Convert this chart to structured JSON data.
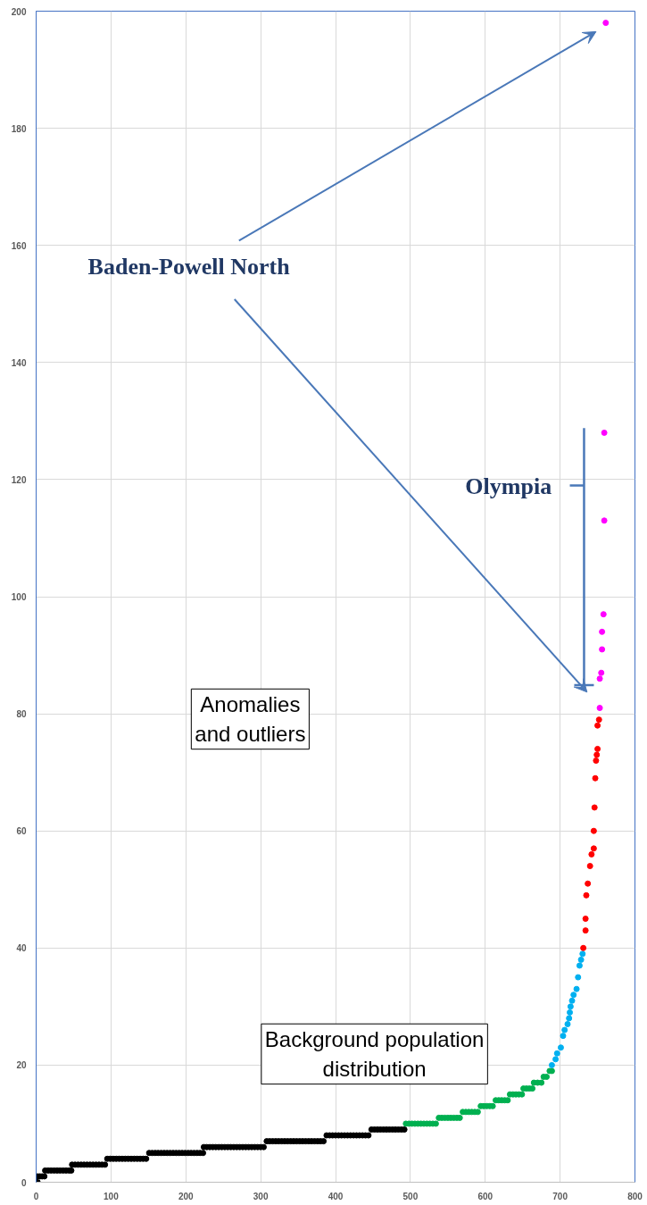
{
  "chart_data": {
    "type": "scatter",
    "marker": "circle",
    "grid": true,
    "xlim": [
      0,
      800
    ],
    "xticks": [
      0,
      100,
      200,
      300,
      400,
      500,
      600,
      700,
      800
    ],
    "ylim": [
      0,
      200
    ],
    "yticks": [
      0,
      20,
      40,
      60,
      80,
      100,
      120,
      140,
      160,
      180,
      200
    ],
    "annotations": [
      "Baden-Powell North",
      "Olympia",
      "Anomalies and outliers",
      "Background population distribution"
    ],
    "series": [
      {
        "color": "#000000",
        "x": [
          0,
          2,
          2,
          5,
          8,
          11,
          12,
          16,
          20,
          24,
          28,
          32,
          36,
          40,
          44,
          47,
          48,
          52,
          56,
          60,
          64,
          68,
          72,
          76,
          80,
          84,
          88,
          92,
          95,
          99,
          103,
          107,
          111,
          115,
          119,
          123,
          127,
          131,
          135,
          139,
          143,
          147,
          151,
          155,
          159,
          163,
          167,
          171,
          175,
          179,
          183,
          187,
          191,
          195,
          199,
          203,
          207,
          211,
          215,
          219,
          223,
          224,
          228,
          232,
          236,
          240,
          244,
          248,
          252,
          256,
          260,
          264,
          268,
          272,
          276,
          280,
          284,
          288,
          292,
          296,
          300,
          304,
          308,
          312,
          316,
          320,
          324,
          328,
          332,
          336,
          340,
          344,
          348,
          352,
          356,
          360,
          364,
          368,
          372,
          376,
          380,
          384,
          388,
          392,
          396,
          400,
          404,
          408,
          412,
          416,
          420,
          424,
          428,
          432,
          436,
          440,
          444,
          448,
          452,
          456,
          460,
          464,
          468,
          472,
          476,
          480,
          484,
          488,
          492
        ],
        "values": [
          0,
          0,
          1,
          1,
          1,
          1,
          2,
          2,
          2,
          2,
          2,
          2,
          2,
          2,
          2,
          2,
          3,
          3,
          3,
          3,
          3,
          3,
          3,
          3,
          3,
          3,
          3,
          3,
          4,
          4,
          4,
          4,
          4,
          4,
          4,
          4,
          4,
          4,
          4,
          4,
          4,
          4,
          5,
          5,
          5,
          5,
          5,
          5,
          5,
          5,
          5,
          5,
          5,
          5,
          5,
          5,
          5,
          5,
          5,
          5,
          5,
          6,
          6,
          6,
          6,
          6,
          6,
          6,
          6,
          6,
          6,
          6,
          6,
          6,
          6,
          6,
          6,
          6,
          6,
          6,
          6,
          6,
          7,
          7,
          7,
          7,
          7,
          7,
          7,
          7,
          7,
          7,
          7,
          7,
          7,
          7,
          7,
          7,
          7,
          7,
          7,
          7,
          8,
          8,
          8,
          8,
          8,
          8,
          8,
          8,
          8,
          8,
          8,
          8,
          8,
          8,
          8,
          9,
          9,
          9,
          9,
          9,
          9,
          9,
          9,
          9,
          9,
          9,
          9
        ]
      },
      {
        "color": "#00b050",
        "x": [
          494,
          498,
          502,
          506,
          510,
          514,
          518,
          522,
          526,
          530,
          534,
          538,
          542,
          546,
          550,
          554,
          558,
          562,
          566,
          570,
          574,
          578,
          582,
          586,
          590,
          594,
          598,
          602,
          606,
          610,
          614,
          618,
          622,
          626,
          630,
          633,
          637,
          641,
          645,
          649,
          651,
          655,
          659,
          663,
          665,
          670,
          675,
          678,
          682,
          686,
          689
        ],
        "values": [
          10,
          10,
          10,
          10,
          10,
          10,
          10,
          10,
          10,
          10,
          10,
          11,
          11,
          11,
          11,
          11,
          11,
          11,
          11,
          12,
          12,
          12,
          12,
          12,
          12,
          13,
          13,
          13,
          13,
          13,
          14,
          14,
          14,
          14,
          14,
          15,
          15,
          15,
          15,
          15,
          16,
          16,
          16,
          16,
          17,
          17,
          17,
          18,
          18,
          19,
          19
        ]
      },
      {
        "color": "#00b0f0",
        "x": [
          689,
          694,
          696,
          701,
          704,
          706,
          710,
          712,
          713,
          714,
          716,
          718,
          722,
          724,
          726,
          728,
          730
        ],
        "values": [
          20,
          21,
          22,
          23,
          25,
          26,
          27,
          28,
          29,
          30,
          31,
          32,
          33,
          35,
          37,
          38,
          39
        ]
      },
      {
        "color": "#ff0000",
        "x": [
          731,
          734,
          734,
          735,
          737,
          740,
          742,
          745,
          745,
          746,
          747,
          748,
          749,
          750,
          750,
          752
        ],
        "values": [
          40,
          43,
          45,
          49,
          51,
          54,
          56,
          57,
          60,
          64,
          69,
          72,
          73,
          74,
          78,
          79
        ]
      },
      {
        "color": "#ff00ff",
        "x": [
          753,
          753,
          755,
          756,
          756,
          758,
          759,
          759,
          761
        ],
        "values": [
          81,
          86,
          87,
          91,
          94,
          97,
          113,
          128,
          198
        ]
      }
    ]
  }
}
